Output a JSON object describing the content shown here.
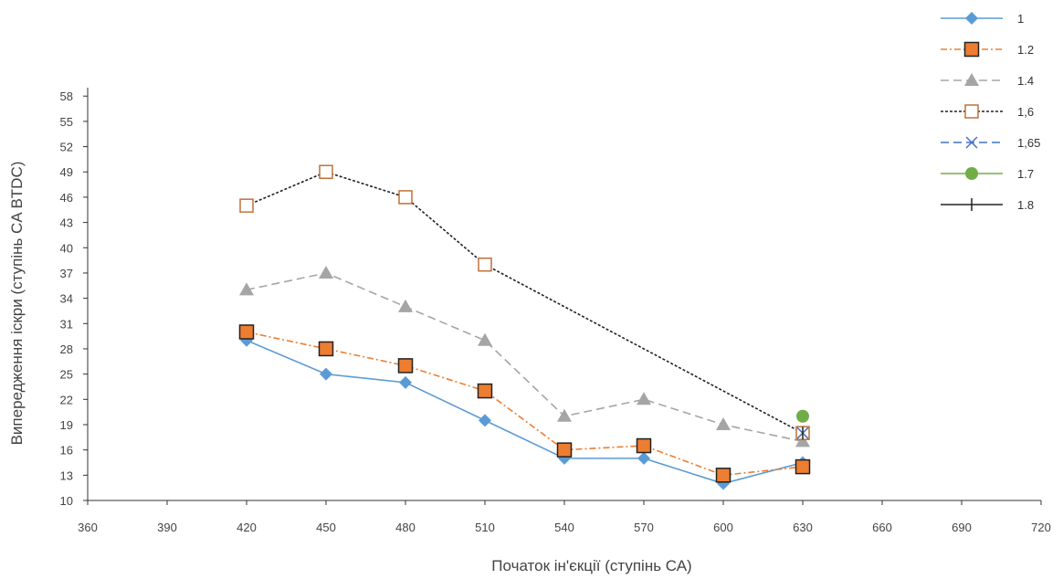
{
  "chart_data": {
    "type": "line",
    "xlabel": "Початок ін'єкції (ступінь СА)",
    "ylabel": "Випередження іскри (ступінь CA BTDC)",
    "xlim": [
      360,
      720
    ],
    "ylim": [
      10,
      59
    ],
    "x_ticks": [
      360,
      390,
      420,
      450,
      480,
      510,
      540,
      570,
      600,
      630,
      660,
      690,
      720
    ],
    "y_ticks": [
      10,
      13,
      16,
      19,
      22,
      25,
      28,
      31,
      34,
      37,
      40,
      43,
      46,
      49,
      52,
      55,
      58
    ],
    "grid": false,
    "legend_position": "top-right",
    "series": [
      {
        "name": "1",
        "color": "#5b9bd5",
        "marker": "diamond",
        "line": "solid",
        "points": [
          [
            420,
            29
          ],
          [
            450,
            25
          ],
          [
            480,
            24
          ],
          [
            510,
            19.5
          ],
          [
            540,
            15
          ],
          [
            570,
            15
          ],
          [
            600,
            12
          ],
          [
            630,
            14.5
          ]
        ]
      },
      {
        "name": "1.2",
        "color": "#ed7d31",
        "marker": "square",
        "line": "dash-dot",
        "points": [
          [
            420,
            30
          ],
          [
            450,
            28
          ],
          [
            480,
            26
          ],
          [
            510,
            23
          ],
          [
            540,
            16
          ],
          [
            570,
            16.5
          ],
          [
            600,
            13
          ],
          [
            630,
            14
          ]
        ]
      },
      {
        "name": "1.4",
        "color": "#a5a5a5",
        "marker": "triangle",
        "line": "dashed",
        "points": [
          [
            420,
            35
          ],
          [
            450,
            37
          ],
          [
            480,
            33
          ],
          [
            510,
            29
          ],
          [
            540,
            20
          ],
          [
            570,
            22
          ],
          [
            600,
            19
          ],
          [
            630,
            17
          ]
        ]
      },
      {
        "name": "1,6",
        "color": "#222222",
        "marker": "open-square",
        "line": "dotted",
        "points": [
          [
            420,
            45
          ],
          [
            450,
            49
          ],
          [
            480,
            46
          ],
          [
            510,
            38
          ],
          [
            630,
            18
          ]
        ]
      },
      {
        "name": "1,65",
        "color": "#4472c4",
        "marker": "x",
        "line": "dashed",
        "points": [
          [
            630,
            18
          ]
        ]
      },
      {
        "name": "1.7",
        "color": "#70ad47",
        "marker": "circle",
        "line": "solid",
        "points": [
          [
            630,
            20
          ]
        ]
      },
      {
        "name": "1.8",
        "color": "#222222",
        "marker": "plus",
        "line": "solid",
        "points": [
          [
            630,
            18
          ]
        ]
      }
    ]
  }
}
